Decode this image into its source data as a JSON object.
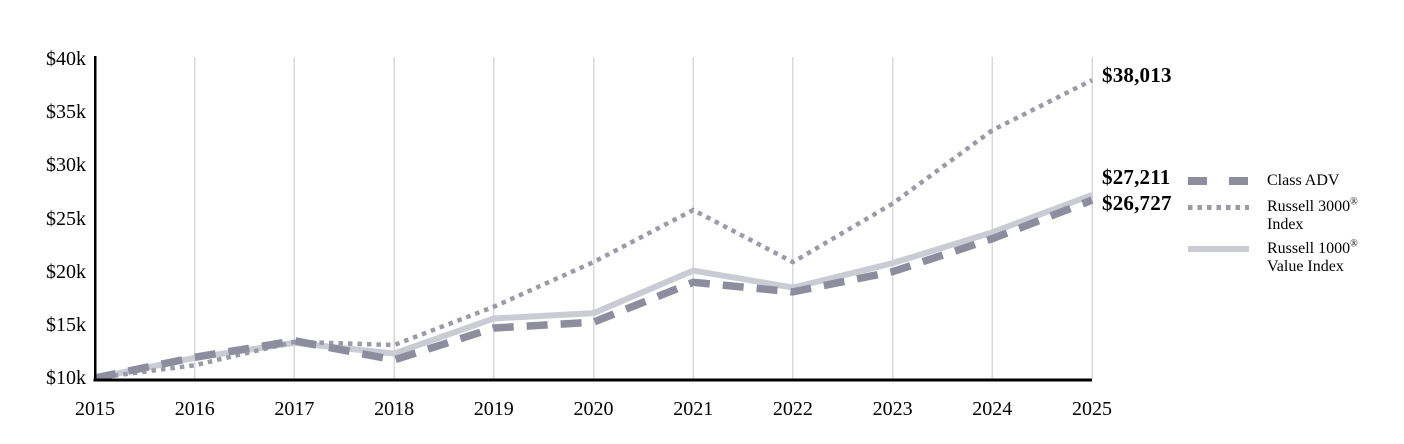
{
  "colors": {
    "axis": "#000000",
    "gridline": "#d9d9dd",
    "text": "#000000",
    "class_adv": "#8d8d9e",
    "russell_3000": "#9a9aa8",
    "russell_1000_value": "#cbcbd4"
  },
  "chart_data": {
    "type": "line",
    "title": "",
    "xlabel": "",
    "ylabel": "",
    "grid": "vertical-only",
    "legend_position": "right",
    "ylim": [
      10000,
      40000
    ],
    "x_tick_labels": [
      "2015",
      "2016",
      "2017",
      "2018",
      "2019",
      "2020",
      "2021",
      "2022",
      "2023",
      "2024",
      "2025"
    ],
    "y_ticks": [
      {
        "label": "$10k",
        "value": 10000
      },
      {
        "label": "$15k",
        "value": 15000
      },
      {
        "label": "$20k",
        "value": 20000
      },
      {
        "label": "$25k",
        "value": 25000
      },
      {
        "label": "$30k",
        "value": 30000
      },
      {
        "label": "$35k",
        "value": 35000
      },
      {
        "label": "$40k",
        "value": 40000
      }
    ],
    "series": [
      {
        "name": "Class ADV",
        "style": "dashed",
        "color": "#8d8d9e",
        "end_label": "$26,727",
        "values": [
          10000,
          11950,
          13500,
          11700,
          14700,
          15250,
          19000,
          18100,
          20000,
          23100,
          26727
        ]
      },
      {
        "name": "Russell 3000® Index",
        "style": "dotted",
        "color": "#9a9aa8",
        "end_label": "$38,013",
        "values": [
          10000,
          11200,
          13400,
          13100,
          16700,
          20900,
          25800,
          20900,
          26400,
          33300,
          38013
        ]
      },
      {
        "name": "Russell 1000® Value Index",
        "style": "solid",
        "color": "#cbcbd4",
        "end_label": "$27,211",
        "values": [
          10000,
          11900,
          13300,
          12300,
          15600,
          16100,
          20100,
          18500,
          20800,
          23700,
          27211
        ]
      }
    ],
    "legend": [
      {
        "line1": "Class ADV",
        "style": "dashed"
      },
      {
        "line1": "Russell 3000",
        "reg": "®",
        "line2": "Index",
        "style": "dotted"
      },
      {
        "line1": "Russell 1000",
        "reg": "®",
        "line2": "Value Index",
        "style": "solid"
      }
    ]
  }
}
